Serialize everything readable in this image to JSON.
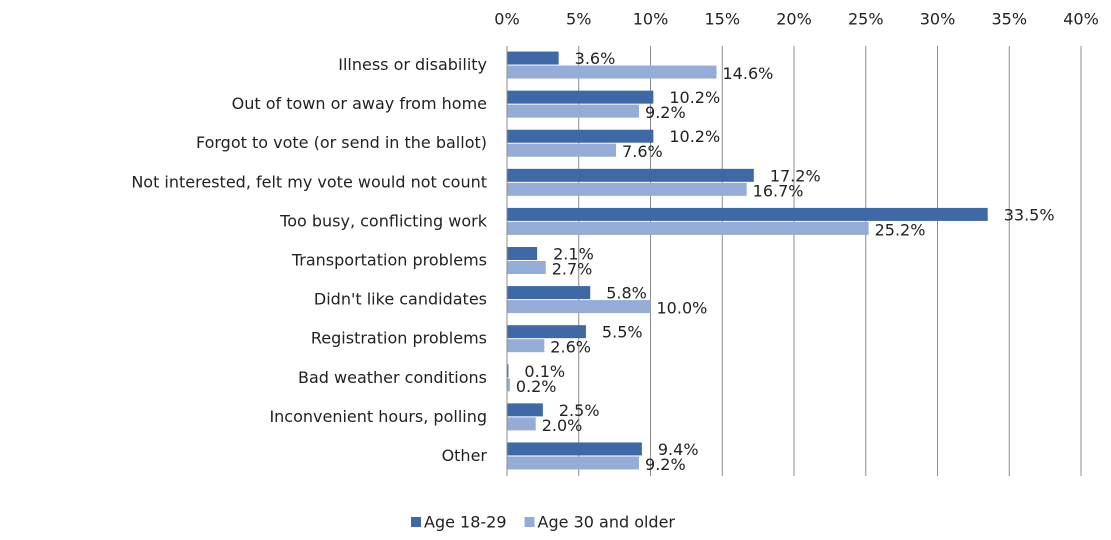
{
  "chart_data": {
    "type": "bar",
    "orientation": "horizontal",
    "categories": [
      "Illness or disability",
      "Out of town or away from home",
      "Forgot to vote (or send in the ballot)",
      "Not interested, felt my vote would not count",
      "Too busy, conflicting work",
      "Transportation problems",
      "Didn't like candidates",
      "Registration problems",
      "Bad weather conditions",
      "Inconvenient hours, polling",
      "Other"
    ],
    "series": [
      {
        "name": "Age 18-29",
        "color": "#3f68a6",
        "values": [
          3.6,
          10.2,
          10.2,
          17.2,
          33.5,
          2.1,
          5.8,
          5.5,
          0.1,
          2.5,
          9.4
        ],
        "value_labels": [
          "3.6%",
          "10.2%",
          "10.2%",
          "17.2%",
          "33.5%",
          "2.1%",
          "5.8%",
          "5.5%",
          "0.1%",
          "2.5%",
          "9.4%"
        ]
      },
      {
        "name": "Age 30 and older",
        "color": "#95acd6",
        "values": [
          14.6,
          9.2,
          7.6,
          16.7,
          25.2,
          2.7,
          10.0,
          2.6,
          0.2,
          2.0,
          9.2
        ],
        "value_labels": [
          "14.6%",
          "9.2%",
          "7.6%",
          "16.7%",
          "25.2%",
          "2.7%",
          "10.0%",
          "2.6%",
          "0.2%",
          "2.0%",
          "9.2%"
        ]
      }
    ],
    "xlim": [
      0,
      40
    ],
    "xticks": [
      {
        "value": 0,
        "label": "0%"
      },
      {
        "value": 5,
        "label": "5%"
      },
      {
        "value": 10,
        "label": "10%"
      },
      {
        "value": 15,
        "label": "15%"
      },
      {
        "value": 20,
        "label": "20%"
      },
      {
        "value": 25,
        "label": "25%"
      },
      {
        "value": 30,
        "label": "30%"
      },
      {
        "value": 35,
        "label": "35%"
      },
      {
        "value": 40,
        "label": "40%"
      }
    ],
    "grid": true,
    "legend": "bottom"
  }
}
